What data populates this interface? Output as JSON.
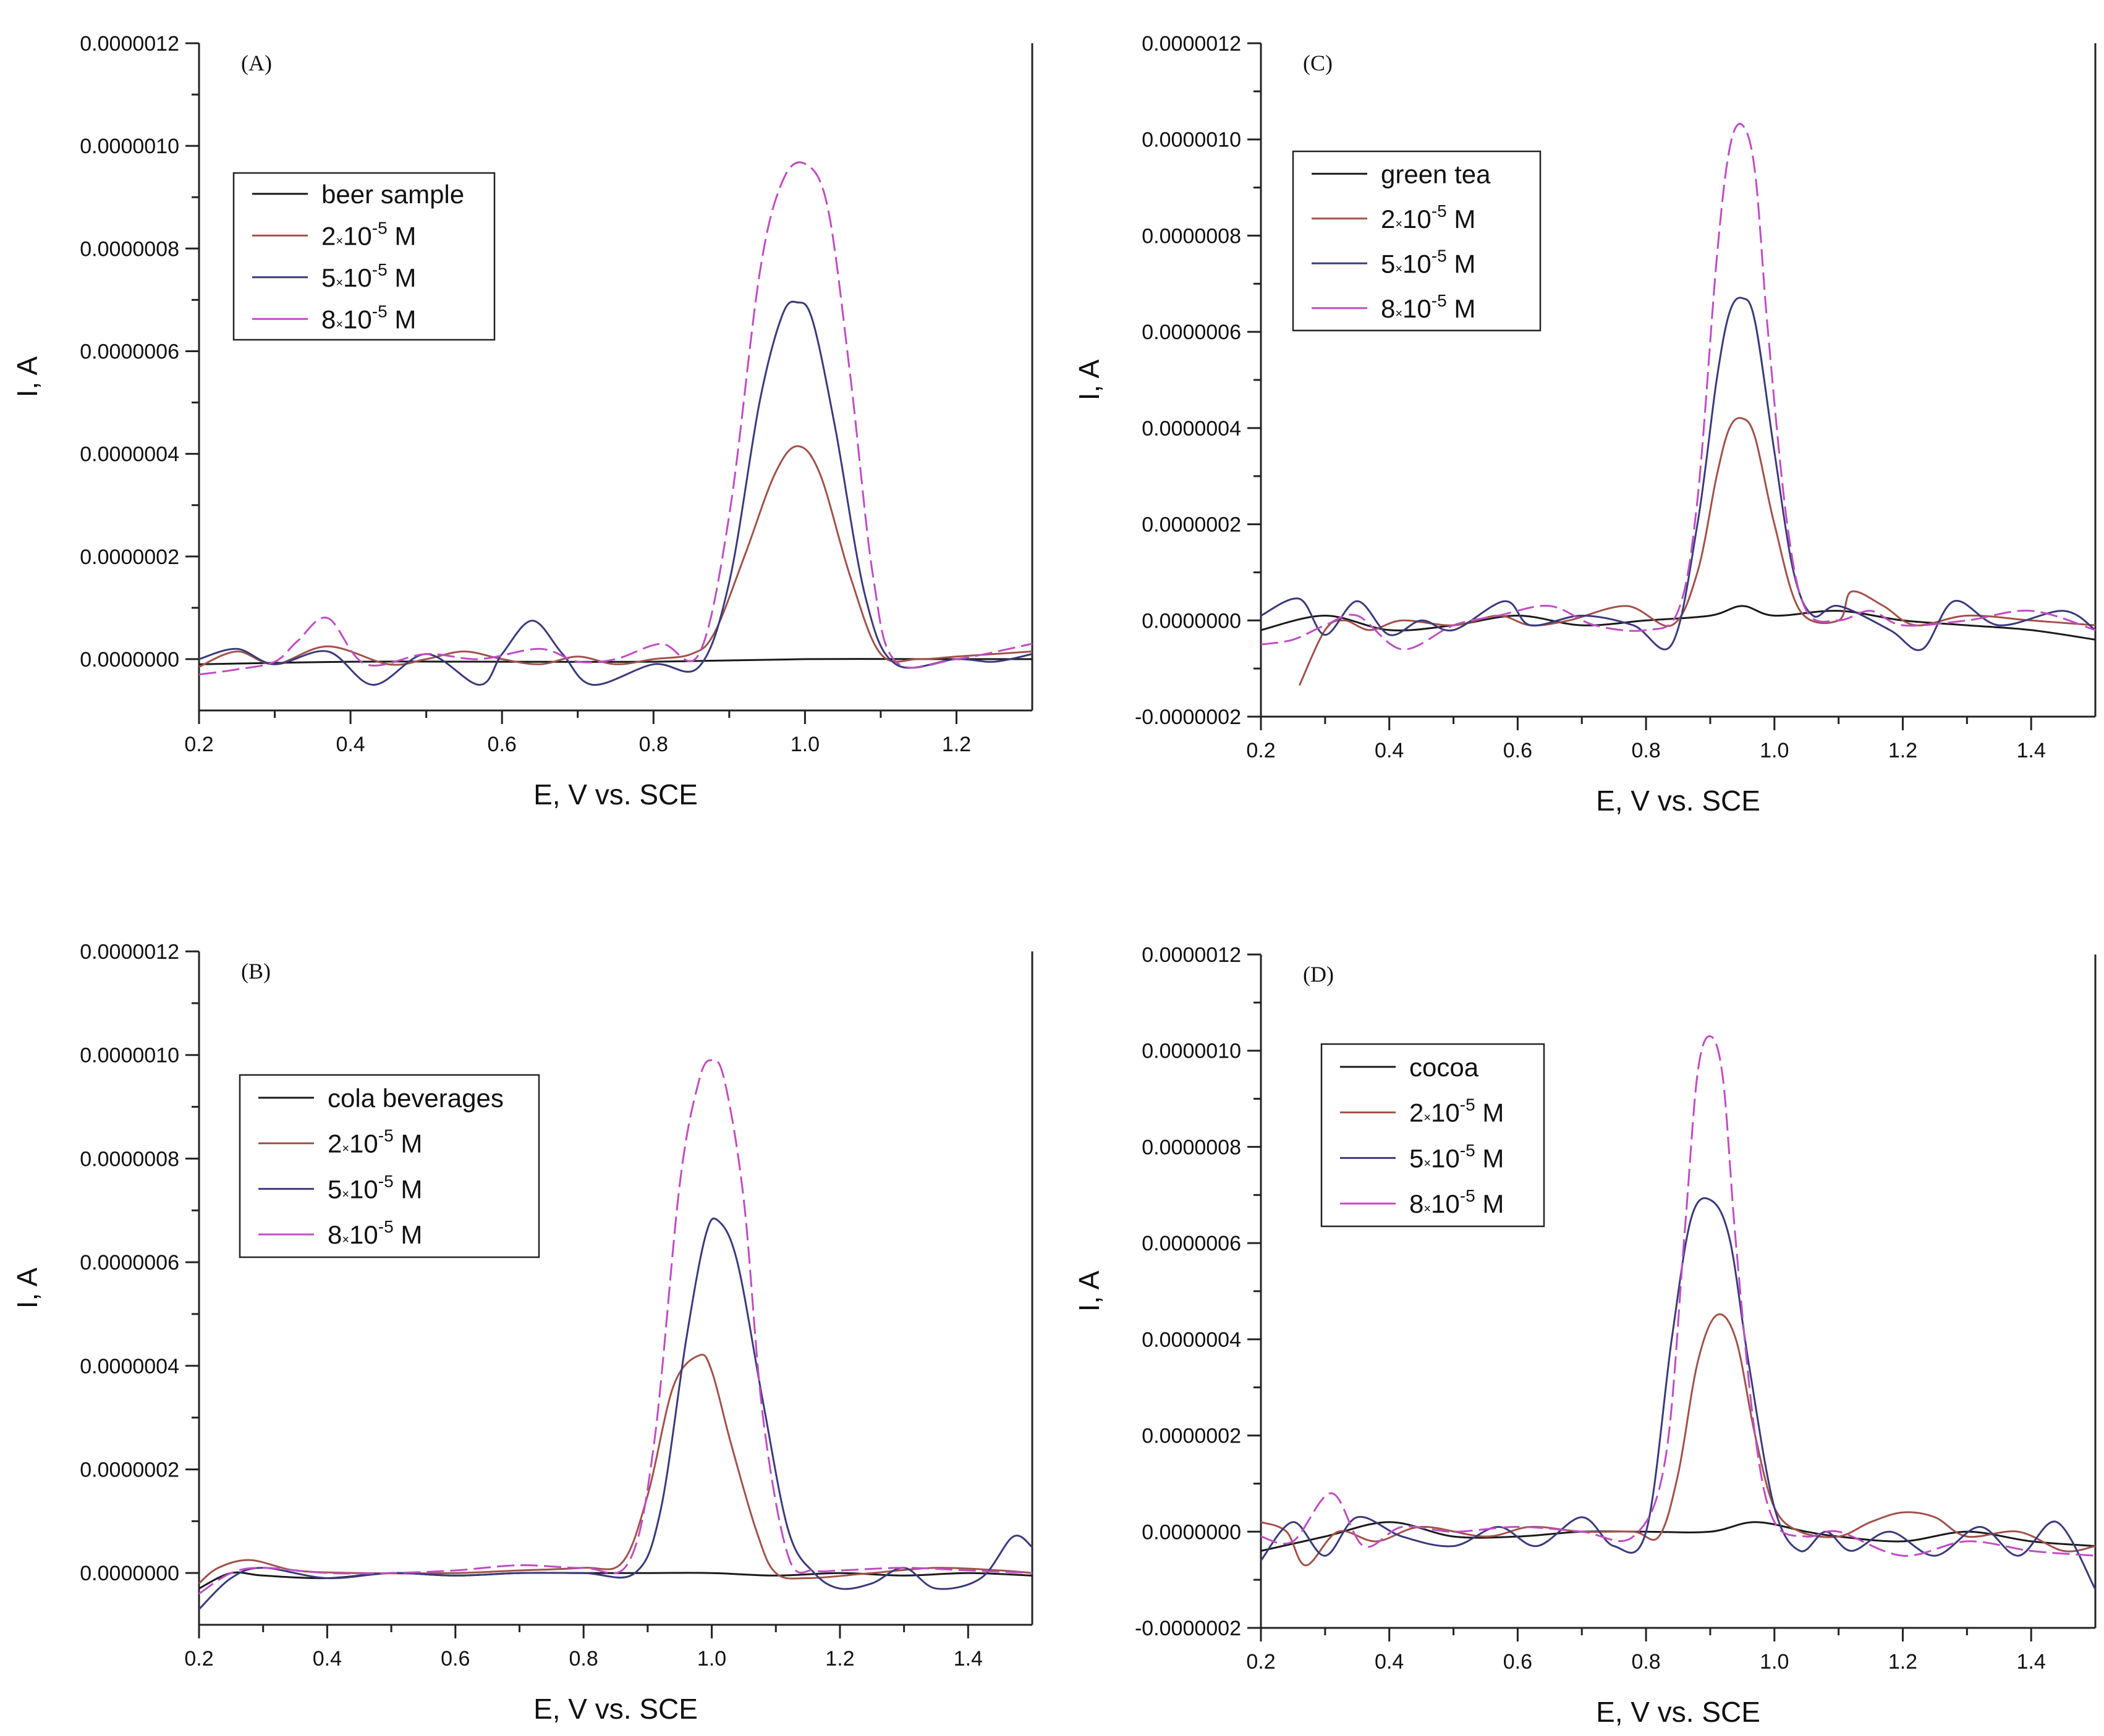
{
  "colors": {
    "sample": "#1a1a1a",
    "c2": "#a0524a",
    "c5": "#3a3a7c",
    "c8": "#c04cc4",
    "axis": "#222222"
  },
  "chart_data": [
    {
      "panel": "(A)",
      "type": "line",
      "xlabel": "E, V vs. SCE",
      "ylabel": "I, A",
      "xlim": [
        0.2,
        1.3
      ],
      "ylim": [
        -1e-07,
        1.2e-06
      ],
      "xticks": [
        "0.2",
        "0.4",
        "0.6",
        "0.8",
        "1.0",
        "1.2"
      ],
      "yticks": [
        "0.0000000",
        "0.0000002",
        "0.0000004",
        "0.0000006",
        "0.0000008",
        "0.0000010",
        "0.0000012"
      ],
      "legend_position": "upper-left",
      "legend": [
        {
          "label": "beer sample",
          "mul": "",
          "exp": "",
          "unit": ""
        },
        {
          "label": "2",
          "mul": "×",
          "exp": "-5",
          "unit": " M"
        },
        {
          "label": "5",
          "mul": "×",
          "exp": "-5",
          "unit": " M"
        },
        {
          "label": "8",
          "mul": "×",
          "exp": "-5",
          "unit": " M"
        }
      ],
      "series": [
        {
          "name": "beer sample",
          "x": [
            0.2,
            0.4,
            0.6,
            0.8,
            1.0,
            1.2,
            1.3
          ],
          "values": [
            -1e-08,
            -5e-09,
            -5e-09,
            -5e-09,
            0,
            0,
            0
          ]
        },
        {
          "name": "2×10-5 M",
          "x": [
            0.2,
            0.25,
            0.3,
            0.37,
            0.45,
            0.5,
            0.55,
            0.6,
            0.65,
            0.7,
            0.75,
            0.8,
            0.85,
            0.88,
            0.92,
            0.96,
            0.99,
            1.02,
            1.06,
            1.1,
            1.15,
            1.2,
            1.3
          ],
          "values": [
            -1.5e-08,
            1.5e-08,
            -1e-08,
            2.5e-08,
            -1e-08,
            0,
            1.5e-08,
            0,
            -1e-08,
            5e-09,
            -1e-08,
            0,
            1e-08,
            5e-08,
            2e-07,
            3.6e-07,
            4.15e-07,
            3.6e-07,
            1.6e-07,
            1e-08,
            0,
            5e-09,
            1.5e-08
          ]
        },
        {
          "name": "5×10-5 M",
          "x": [
            0.2,
            0.25,
            0.3,
            0.37,
            0.43,
            0.5,
            0.57,
            0.6,
            0.64,
            0.68,
            0.72,
            0.8,
            0.86,
            0.9,
            0.94,
            0.97,
            0.99,
            1.01,
            1.04,
            1.08,
            1.12,
            1.2,
            1.25,
            1.3
          ],
          "values": [
            0,
            2e-08,
            -1e-08,
            1.5e-08,
            -5e-08,
            1e-08,
            -5e-08,
            1e-08,
            7.5e-08,
            1e-08,
            -5e-08,
            -1e-08,
            -1.5e-08,
            1.5e-07,
            5e-07,
            6.7e-07,
            6.95e-07,
            6.6e-07,
            4.5e-07,
            1.2e-07,
            -1e-08,
            0,
            -5e-09,
            1e-08
          ]
        },
        {
          "name": "8×10-5 M",
          "x": [
            0.2,
            0.25,
            0.3,
            0.33,
            0.37,
            0.42,
            0.5,
            0.57,
            0.65,
            0.7,
            0.75,
            0.81,
            0.86,
            0.9,
            0.94,
            0.97,
            1.0,
            1.03,
            1.06,
            1.09,
            1.12,
            1.2,
            1.3
          ],
          "values": [
            -3e-08,
            -2e-08,
            -5e-09,
            3.5e-08,
            8e-08,
            -1e-08,
            1e-08,
            0,
            2e-08,
            -5e-09,
            0,
            3e-08,
            1e-08,
            2.8e-07,
            7.5e-07,
            9.3e-07,
            9.65e-07,
            8.8e-07,
            5.5e-07,
            1.6e-07,
            -5e-09,
            0,
            3e-08
          ]
        }
      ]
    },
    {
      "panel": "(C)",
      "type": "line",
      "xlabel": "E, V vs. SCE",
      "ylabel": "I, A",
      "xlim": [
        0.2,
        1.5
      ],
      "ylim": [
        -2e-07,
        1.2e-06
      ],
      "xticks": [
        "0.2",
        "0.4",
        "0.6",
        "0.8",
        "1.0",
        "1.2",
        "1.4"
      ],
      "yticks": [
        "-0.0000002",
        "0.0000000",
        "0.0000002",
        "0.0000004",
        "0.0000006",
        "0.0000008",
        "0.0000010",
        "0.0000012"
      ],
      "legend_position": "upper-left",
      "legend": [
        {
          "label": "green tea",
          "mul": "",
          "exp": "",
          "unit": ""
        },
        {
          "label": "2",
          "mul": "×",
          "exp": "-5",
          "unit": " M"
        },
        {
          "label": "5",
          "mul": "×",
          "exp": "-5",
          "unit": " M"
        },
        {
          "label": "8",
          "mul": "×",
          "exp": "-5",
          "unit": " M"
        }
      ],
      "series": [
        {
          "name": "green tea",
          "x": [
            0.2,
            0.3,
            0.4,
            0.5,
            0.6,
            0.7,
            0.8,
            0.9,
            0.95,
            1.0,
            1.1,
            1.2,
            1.3,
            1.4,
            1.5
          ],
          "values": [
            -2e-08,
            1e-08,
            -2e-08,
            -1e-08,
            1e-08,
            -1e-08,
            0,
            1e-08,
            3e-08,
            1e-08,
            2e-08,
            0,
            -1e-08,
            -2e-08,
            -4e-08
          ]
        },
        {
          "name": "2×10-5 M",
          "x": [
            0.26,
            0.3,
            0.33,
            0.37,
            0.42,
            0.5,
            0.57,
            0.62,
            0.68,
            0.77,
            0.84,
            0.88,
            0.91,
            0.93,
            0.95,
            0.97,
            1.0,
            1.04,
            1.1,
            1.12,
            1.17,
            1.22,
            1.3,
            1.4,
            1.5
          ],
          "values": [
            -1.35e-07,
            -2e-08,
            0,
            -2e-08,
            0,
            -1e-08,
            1e-08,
            -1e-08,
            0,
            3e-08,
            -1e-08,
            1e-07,
            3e-07,
            4e-07,
            4.2e-07,
            3.8e-07,
            2e-07,
            2e-08,
            0,
            6e-08,
            3e-08,
            -1e-08,
            1e-08,
            0,
            -1e-08
          ]
        },
        {
          "name": "5×10-5 M",
          "x": [
            0.2,
            0.26,
            0.3,
            0.35,
            0.4,
            0.45,
            0.5,
            0.58,
            0.62,
            0.7,
            0.78,
            0.84,
            0.88,
            0.91,
            0.93,
            0.95,
            0.97,
            1.0,
            1.03,
            1.06,
            1.1,
            1.18,
            1.23,
            1.28,
            1.35,
            1.45,
            1.5
          ],
          "values": [
            1e-08,
            4.5e-08,
            -3e-08,
            4e-08,
            -3e-08,
            0,
            -2e-08,
            4e-08,
            -1e-08,
            1e-08,
            -1e-08,
            -5e-08,
            2e-07,
            5e-07,
            6.4e-07,
            6.7e-07,
            6.2e-07,
            3.5e-07,
            1e-07,
            1e-08,
            3e-08,
            -2e-08,
            -6e-08,
            4e-08,
            -1e-08,
            2e-08,
            -2e-08
          ]
        },
        {
          "name": "8×10-5 M",
          "x": [
            0.2,
            0.25,
            0.3,
            0.35,
            0.42,
            0.5,
            0.57,
            0.65,
            0.72,
            0.8,
            0.85,
            0.88,
            0.91,
            0.93,
            0.95,
            0.97,
            0.99,
            1.02,
            1.05,
            1.1,
            1.15,
            1.2,
            1.3,
            1.4,
            1.5
          ],
          "values": [
            -5e-08,
            -4e-08,
            -1e-08,
            1e-08,
            -6e-08,
            -1e-08,
            1e-08,
            3e-08,
            -1e-08,
            -2e-08,
            2e-08,
            2.5e-07,
            7.5e-07,
            9.8e-07,
            1.03e-06,
            9.3e-07,
            6e-07,
            2e-07,
            2e-08,
            0,
            2e-08,
            -1e-08,
            0,
            2e-08,
            -2e-08
          ]
        }
      ]
    },
    {
      "panel": "(B)",
      "type": "line",
      "xlabel": "E, V vs. SCE",
      "ylabel": "I, A",
      "xlim": [
        0.2,
        1.5
      ],
      "ylim": [
        -1e-07,
        1.2e-06
      ],
      "xticks": [
        "0.2",
        "0.4",
        "0.6",
        "0.8",
        "1.0",
        "1.2",
        "1.4"
      ],
      "yticks": [
        "0.0000000",
        "0.0000002",
        "0.0000004",
        "0.0000006",
        "0.0000008",
        "0.0000010",
        "0.0000012"
      ],
      "legend_position": "upper-left",
      "legend": [
        {
          "label": "cola beverages",
          "mul": "",
          "exp": "",
          "unit": ""
        },
        {
          "label": "2",
          "mul": "×",
          "exp": "-5",
          "unit": " M"
        },
        {
          "label": "5",
          "mul": "×",
          "exp": "-5",
          "unit": " M"
        },
        {
          "label": "8",
          "mul": "×",
          "exp": "-5",
          "unit": " M"
        }
      ],
      "series": [
        {
          "name": "cola beverages",
          "x": [
            0.2,
            0.25,
            0.3,
            0.4,
            0.5,
            0.6,
            0.7,
            0.8,
            0.9,
            1.0,
            1.1,
            1.2,
            1.3,
            1.4,
            1.5
          ],
          "values": [
            -3e-08,
            0,
            -5e-09,
            -1e-08,
            0,
            -5e-09,
            0,
            0,
            0,
            0,
            -5e-09,
            0,
            -5e-09,
            0,
            -5e-09
          ]
        },
        {
          "name": "2×10-5 M",
          "x": [
            0.2,
            0.23,
            0.28,
            0.35,
            0.45,
            0.6,
            0.7,
            0.8,
            0.86,
            0.9,
            0.94,
            0.98,
            1.0,
            1.03,
            1.07,
            1.1,
            1.15,
            1.25,
            1.35,
            1.45,
            1.5
          ],
          "values": [
            -2e-08,
            1e-08,
            2.5e-08,
            5e-09,
            0,
            0,
            5e-09,
            1e-08,
            2e-08,
            1.5e-07,
            3.6e-07,
            4.2e-07,
            3.9e-07,
            2.5e-07,
            8e-08,
            0,
            -1e-08,
            0,
            1e-08,
            5e-09,
            0
          ]
        },
        {
          "name": "5×10-5 M",
          "x": [
            0.2,
            0.25,
            0.3,
            0.4,
            0.5,
            0.6,
            0.7,
            0.8,
            0.88,
            0.92,
            0.96,
            0.99,
            1.01,
            1.04,
            1.08,
            1.12,
            1.16,
            1.2,
            1.25,
            1.3,
            1.35,
            1.42,
            1.47,
            1.5
          ],
          "values": [
            -7e-08,
            -1e-08,
            1e-08,
            -1e-08,
            0,
            -5e-09,
            0,
            0,
            0,
            1.2e-07,
            4.5e-07,
            6.5e-07,
            6.8e-07,
            6e-07,
            3.3e-07,
            8e-08,
            0,
            -3e-08,
            -2e-08,
            1e-08,
            -3e-08,
            -1e-08,
            7e-08,
            5e-08
          ]
        },
        {
          "name": "8×10-5 M",
          "x": [
            0.2,
            0.25,
            0.3,
            0.4,
            0.5,
            0.6,
            0.7,
            0.8,
            0.87,
            0.91,
            0.95,
            0.98,
            1.0,
            1.02,
            1.05,
            1.08,
            1.12,
            1.16,
            1.2,
            1.3,
            1.4,
            1.5
          ],
          "values": [
            -4e-08,
            0,
            1e-08,
            0,
            0,
            5e-09,
            1.5e-08,
            1e-08,
            2e-08,
            2.5e-07,
            7.5e-07,
            9.5e-07,
            9.9e-07,
            9.5e-07,
            7.2e-07,
            3e-07,
            3e-08,
            5e-09,
            5e-09,
            1e-08,
            5e-09,
            0
          ]
        }
      ]
    },
    {
      "panel": "(D)",
      "type": "line",
      "xlabel": "E, V vs. SCE",
      "ylabel": "I, A",
      "xlim": [
        0.2,
        1.5
      ],
      "ylim": [
        -2e-07,
        1.2e-06
      ],
      "xticks": [
        "0.2",
        "0.4",
        "0.6",
        "0.8",
        "1.0",
        "1.2",
        "1.4"
      ],
      "yticks": [
        "-0.0000002",
        "0.0000000",
        "0.0000002",
        "0.0000004",
        "0.0000006",
        "0.0000008",
        "0.0000010",
        "0.0000012"
      ],
      "legend_position": "upper-left",
      "legend": [
        {
          "label": "cocoa",
          "mul": "",
          "exp": "",
          "unit": ""
        },
        {
          "label": "2",
          "mul": "×",
          "exp": "-5",
          "unit": " M"
        },
        {
          "label": "5",
          "mul": "×",
          "exp": "-5",
          "unit": " M"
        },
        {
          "label": "8",
          "mul": "×",
          "exp": "-5",
          "unit": " M"
        }
      ],
      "series": [
        {
          "name": "cocoa",
          "x": [
            0.2,
            0.3,
            0.4,
            0.5,
            0.6,
            0.7,
            0.8,
            0.9,
            0.97,
            1.05,
            1.1,
            1.2,
            1.3,
            1.4,
            1.5
          ],
          "values": [
            -4e-08,
            -1e-08,
            2e-08,
            -1e-08,
            -1e-08,
            0,
            0,
            0,
            2e-08,
            0,
            -1e-08,
            -2e-08,
            0,
            -2e-08,
            -3e-08
          ]
        },
        {
          "name": "2×10-5 M",
          "x": [
            0.2,
            0.24,
            0.27,
            0.32,
            0.38,
            0.45,
            0.55,
            0.62,
            0.7,
            0.78,
            0.82,
            0.85,
            0.88,
            0.91,
            0.94,
            0.97,
            1.0,
            1.04,
            1.1,
            1.15,
            1.2,
            1.25,
            1.3,
            1.38,
            1.45,
            1.5
          ],
          "values": [
            2e-08,
            0,
            -7e-08,
            0,
            -2e-08,
            1e-08,
            -1e-08,
            1e-08,
            0,
            0,
            -1e-08,
            1.2e-07,
            3.5e-07,
            4.5e-07,
            4e-07,
            2e-07,
            5e-08,
            0,
            -1e-08,
            2e-08,
            4e-08,
            3e-08,
            -1e-08,
            0,
            -4e-08,
            -3e-08
          ]
        },
        {
          "name": "5×10-5 M",
          "x": [
            0.2,
            0.25,
            0.3,
            0.35,
            0.42,
            0.5,
            0.57,
            0.63,
            0.7,
            0.75,
            0.8,
            0.84,
            0.87,
            0.9,
            0.93,
            0.96,
            1.0,
            1.04,
            1.08,
            1.12,
            1.18,
            1.25,
            1.32,
            1.38,
            1.44,
            1.5
          ],
          "values": [
            -6e-08,
            2e-08,
            -5e-08,
            3e-08,
            -1e-08,
            -3e-08,
            1e-08,
            -3e-08,
            3e-08,
            -3e-08,
            0,
            4e-07,
            6.5e-07,
            6.9e-07,
            6.1e-07,
            3.5e-07,
            5e-08,
            -4e-08,
            0,
            -4e-08,
            0,
            -5e-08,
            1e-08,
            -5e-08,
            2e-08,
            -1.2e-07
          ]
        },
        {
          "name": "8×10-5 M",
          "x": [
            0.2,
            0.25,
            0.31,
            0.36,
            0.42,
            0.5,
            0.6,
            0.7,
            0.78,
            0.83,
            0.86,
            0.88,
            0.9,
            0.92,
            0.94,
            0.97,
            1.0,
            1.05,
            1.1,
            1.2,
            1.3,
            1.4,
            1.5
          ],
          "values": [
            -1e-08,
            -2e-08,
            8e-08,
            -3e-08,
            1e-08,
            0,
            1e-08,
            0,
            -1e-08,
            1.5e-07,
            6.2e-07,
            9.5e-07,
            1.03e-06,
            9.4e-07,
            6e-07,
            2e-07,
            2e-08,
            -1e-08,
            0,
            -5e-08,
            -2e-08,
            -4e-08,
            -5e-08
          ]
        }
      ]
    }
  ]
}
